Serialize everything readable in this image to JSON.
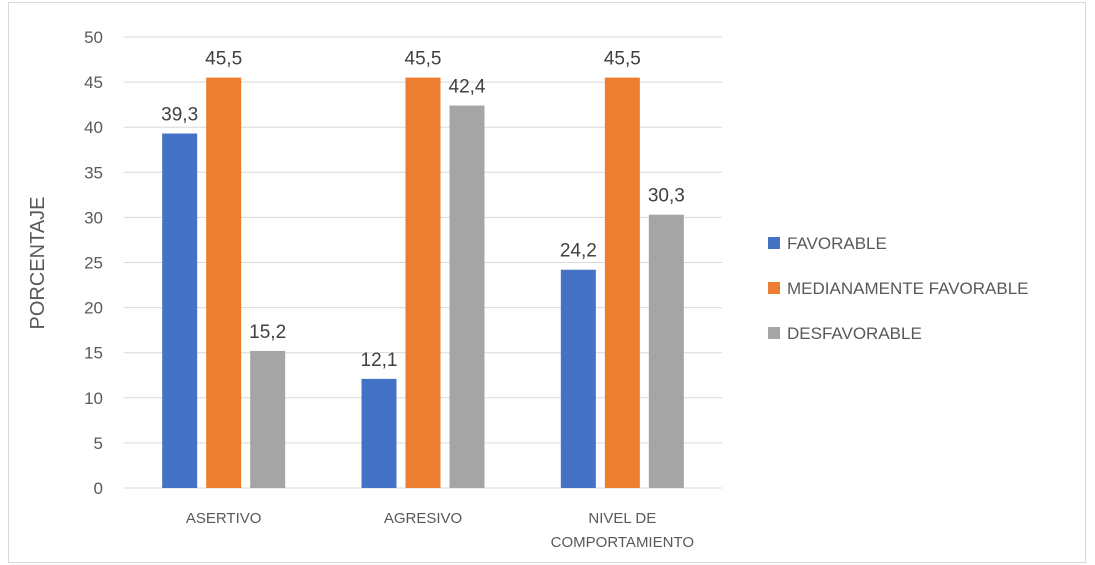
{
  "chart_data": {
    "type": "bar",
    "categories": [
      [
        "ASERTIVO"
      ],
      [
        "AGRESIVO"
      ],
      [
        "NIVEL DE",
        "COMPORTAMIENTO"
      ]
    ],
    "series": [
      {
        "name": "FAVORABLE",
        "color": "#4472c4",
        "values": [
          39.3,
          12.1,
          24.2
        ],
        "labels": [
          "39,3",
          "12,1",
          "24,2"
        ]
      },
      {
        "name": "MEDIANAMENTE FAVORABLE",
        "color": "#ed7d31",
        "values": [
          45.5,
          45.5,
          45.5
        ],
        "labels": [
          "45,5",
          "45,5",
          "45,5"
        ]
      },
      {
        "name": "DESFAVORABLE",
        "color": "#a5a5a5",
        "values": [
          15.2,
          42.4,
          30.3
        ],
        "labels": [
          "15,2",
          "42,4",
          "30,3"
        ]
      }
    ],
    "ylabel": "PORCENTAJE",
    "ylim": [
      0,
      50
    ],
    "yticks": [
      0,
      5,
      10,
      15,
      20,
      25,
      30,
      35,
      40,
      45,
      50
    ],
    "grid": true,
    "legend": "right",
    "gridline_color": "#d9d9d9"
  }
}
